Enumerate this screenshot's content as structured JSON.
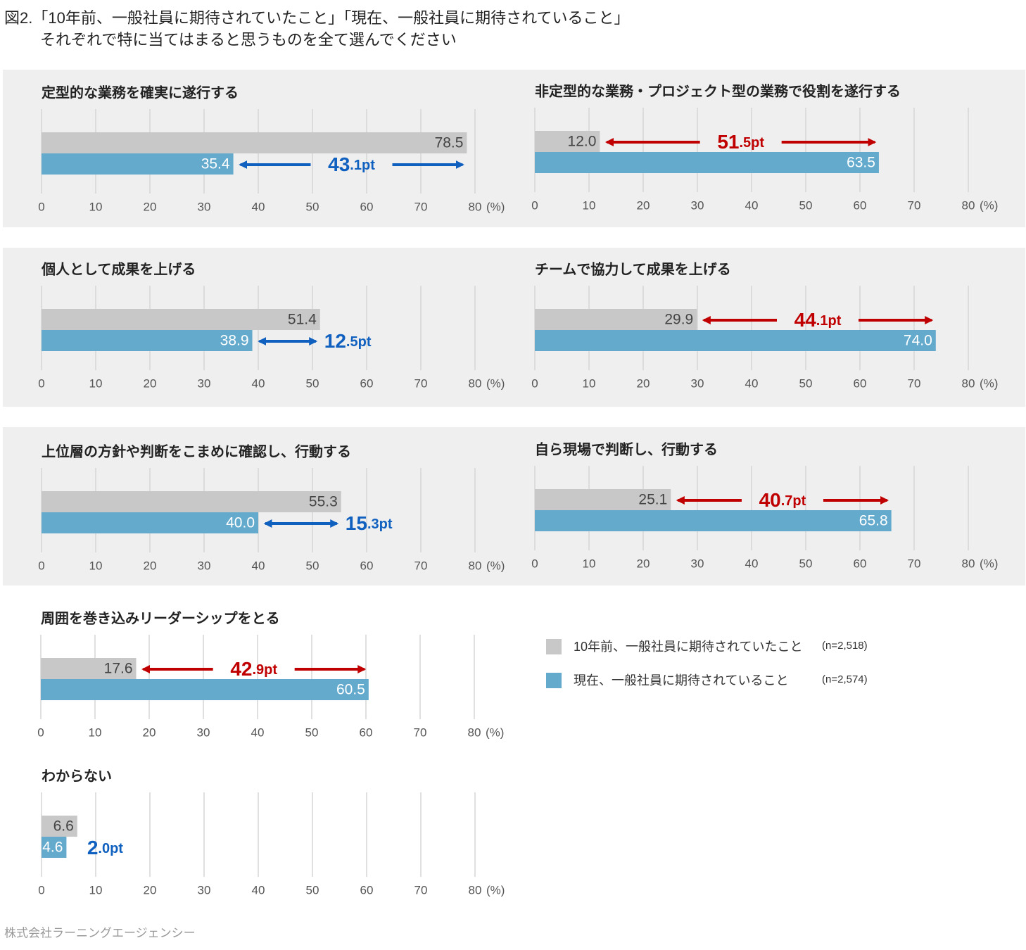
{
  "title": "図2.「10年前、一般社員に期待されていたこと」「現在、一般社員に期待されていること」",
  "subtitle": "それぞれで特に当てはまると思うものを全て選んでください",
  "source": "株式会社ラーニングエージェンシー",
  "legend": [
    {
      "name": "10年前、一般社員に期待されていたこと",
      "n": "(n=2,518)",
      "color": "#c8c8c8"
    },
    {
      "name": "現在、一般社員に期待されていること",
      "n": "(n=2,574)",
      "color": "#64aacd"
    }
  ],
  "xlim": [
    0,
    80
  ],
  "xticks": [
    0,
    10,
    20,
    30,
    40,
    50,
    60,
    70,
    80
  ],
  "unit": "(%)",
  "chart_data": [
    {
      "type": "bar",
      "title": "定型的な業務を確実に遂行する",
      "values": [
        78.5,
        35.4
      ],
      "value_labels": [
        "78.5",
        "35.4"
      ],
      "diff": 43.1,
      "diff_label": "43.1pt",
      "diff_color": "#1060c0"
    },
    {
      "type": "bar",
      "title": "非定型的な業務・プロジェクト型の業務で役割を遂行する",
      "values": [
        12.0,
        63.5
      ],
      "value_labels": [
        "12.0",
        "63.5"
      ],
      "diff": 51.5,
      "diff_label": "51.5pt",
      "diff_color": "#c00000"
    },
    {
      "type": "bar",
      "title": "個人として成果を上げる",
      "values": [
        51.4,
        38.9
      ],
      "value_labels": [
        "51.4",
        "38.9"
      ],
      "diff": 12.5,
      "diff_label": "12.5pt",
      "diff_color": "#1060c0"
    },
    {
      "type": "bar",
      "title": "チームで協力して成果を上げる",
      "values": [
        29.9,
        74.0
      ],
      "value_labels": [
        "29.9",
        "74.0"
      ],
      "diff": 44.1,
      "diff_label": "44.1pt",
      "diff_color": "#c00000"
    },
    {
      "type": "bar",
      "title": "上位層の方針や判断をこまめに確認し、行動する",
      "values": [
        55.3,
        40.0
      ],
      "value_labels": [
        "55.3",
        "40.0"
      ],
      "diff": 15.3,
      "diff_label": "15.3pt",
      "diff_color": "#1060c0"
    },
    {
      "type": "bar",
      "title": "自ら現場で判断し、行動する",
      "values": [
        25.1,
        65.8
      ],
      "value_labels": [
        "25.1",
        "65.8"
      ],
      "diff": 40.7,
      "diff_label": "40.7pt",
      "diff_color": "#c00000"
    },
    {
      "type": "bar",
      "title": "周囲を巻き込みリーダーシップをとる",
      "values": [
        17.6,
        60.5
      ],
      "value_labels": [
        "17.6",
        "60.5"
      ],
      "diff": 42.9,
      "diff_label": "42.9pt",
      "diff_color": "#c00000"
    },
    {
      "type": "bar",
      "title": "わからない",
      "values": [
        6.6,
        4.6
      ],
      "value_labels": [
        "6.6",
        "4.6"
      ],
      "diff": 2.0,
      "diff_label": "2.0pt",
      "diff_color": "#1060c0"
    }
  ]
}
